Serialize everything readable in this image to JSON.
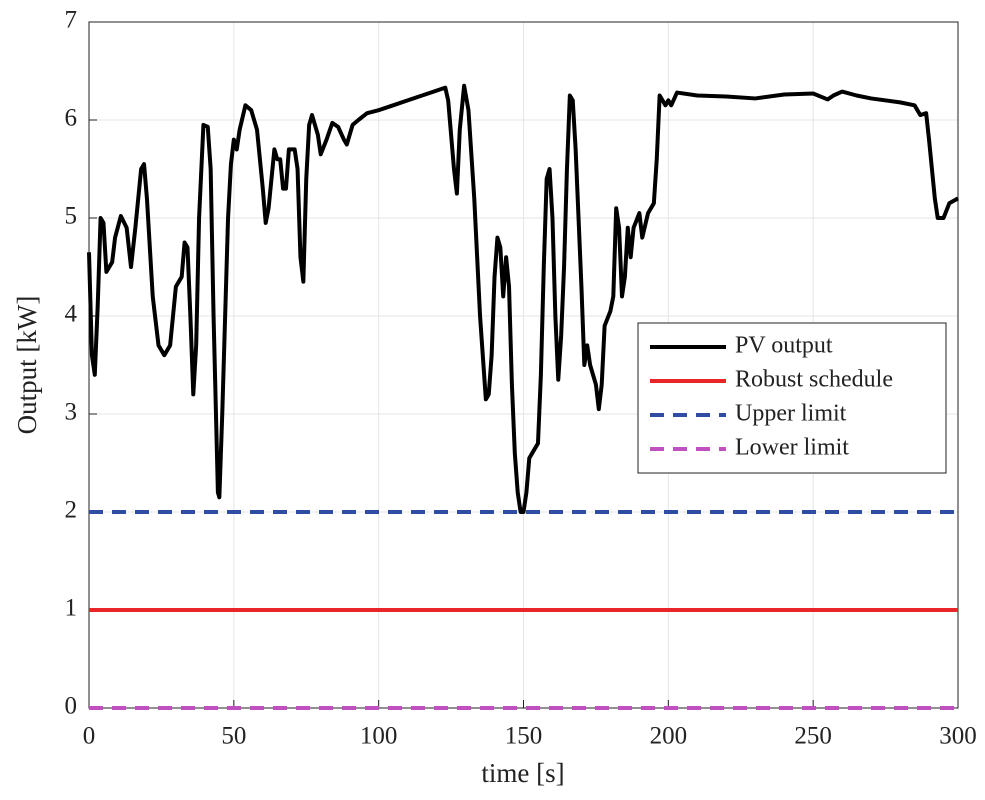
{
  "chart_data": {
    "type": "line",
    "xlabel": "time [s]",
    "ylabel": "Output [kW]",
    "xlim": [
      0,
      300
    ],
    "ylim": [
      0,
      7
    ],
    "xticks": [
      0,
      50,
      100,
      150,
      200,
      250,
      300
    ],
    "yticks": [
      0,
      1,
      2,
      3,
      4,
      5,
      6,
      7
    ],
    "grid": true,
    "legend": "east",
    "series": [
      {
        "name": "PV output",
        "color": "#000000",
        "line_style": "solid",
        "x": [
          0,
          1,
          2,
          3,
          4,
          5,
          6,
          8,
          9,
          11,
          13,
          14.5,
          16,
          18,
          19,
          20,
          22,
          24,
          26,
          28,
          30,
          31,
          32,
          33,
          34,
          35,
          36,
          37,
          38,
          39.5,
          41,
          42,
          43,
          44.5,
          45,
          46,
          48,
          49,
          50,
          51,
          52,
          54,
          56,
          58,
          60,
          61,
          62,
          64,
          65,
          66,
          67,
          68,
          69,
          71,
          72,
          73,
          74,
          75,
          76,
          77,
          79,
          80,
          82,
          84,
          86,
          88,
          89,
          91,
          93,
          96,
          100,
          105,
          110,
          115,
          120,
          123,
          124,
          126,
          127,
          128,
          129.5,
          131,
          133,
          135,
          137,
          138,
          139,
          140,
          141,
          142,
          143,
          144,
          145,
          146,
          147,
          148,
          149,
          150,
          151,
          152,
          153,
          155,
          156,
          157,
          158,
          159,
          160,
          161,
          162,
          163,
          164,
          165,
          166,
          167,
          168,
          170,
          171,
          172,
          173,
          175,
          176,
          177,
          178,
          180,
          181,
          182,
          183,
          184,
          185,
          186,
          187,
          188,
          190,
          191,
          193,
          195,
          196,
          197,
          198,
          199,
          200,
          201,
          203,
          210,
          220,
          230,
          240,
          250,
          255,
          257,
          260,
          265,
          270,
          280,
          285,
          287,
          289,
          290,
          292,
          293,
          295,
          297,
          300
        ],
        "values": [
          4.65,
          3.6,
          3.4,
          4.1,
          5.0,
          4.95,
          4.45,
          4.55,
          4.8,
          5.02,
          4.9,
          4.5,
          4.9,
          5.5,
          5.55,
          5.2,
          4.2,
          3.7,
          3.6,
          3.7,
          4.3,
          4.35,
          4.4,
          4.75,
          4.7,
          4.0,
          3.2,
          3.7,
          5.0,
          5.95,
          5.93,
          5.5,
          4.0,
          2.2,
          2.15,
          3.0,
          5.0,
          5.55,
          5.8,
          5.7,
          5.9,
          6.15,
          6.1,
          5.9,
          5.3,
          4.95,
          5.1,
          5.7,
          5.6,
          5.6,
          5.3,
          5.3,
          5.7,
          5.7,
          5.5,
          4.6,
          4.35,
          5.4,
          5.95,
          6.05,
          5.85,
          5.65,
          5.8,
          5.97,
          5.93,
          5.8,
          5.75,
          5.95,
          6.0,
          6.07,
          6.1,
          6.15,
          6.2,
          6.25,
          6.3,
          6.33,
          6.2,
          5.5,
          5.25,
          5.9,
          6.35,
          6.1,
          5.2,
          4.0,
          3.15,
          3.2,
          3.6,
          4.4,
          4.8,
          4.7,
          4.2,
          4.6,
          4.3,
          3.3,
          2.6,
          2.2,
          2.0,
          2.0,
          2.2,
          2.55,
          2.6,
          2.7,
          3.4,
          4.5,
          5.4,
          5.5,
          5.0,
          4.0,
          3.35,
          3.8,
          4.5,
          5.5,
          6.25,
          6.2,
          5.7,
          4.3,
          3.5,
          3.7,
          3.5,
          3.3,
          3.05,
          3.3,
          3.9,
          4.05,
          4.2,
          5.1,
          4.9,
          4.2,
          4.4,
          4.9,
          4.6,
          4.9,
          5.05,
          4.8,
          5.05,
          5.15,
          5.6,
          6.25,
          6.2,
          6.15,
          6.2,
          6.15,
          6.28,
          6.25,
          6.24,
          6.22,
          6.26,
          6.27,
          6.21,
          6.25,
          6.29,
          6.25,
          6.22,
          6.18,
          6.15,
          6.05,
          6.07,
          5.8,
          5.2,
          5.0,
          5.0,
          5.15,
          5.2
        ]
      },
      {
        "name": "Robust schedule",
        "color": "#e8262a",
        "line_style": "solid",
        "x": [
          0,
          300
        ],
        "values": [
          1,
          1
        ]
      },
      {
        "name": "Upper limit",
        "color": "#2f4ea3",
        "line_style": "dashed",
        "x": [
          0,
          300
        ],
        "values": [
          2,
          2
        ]
      },
      {
        "name": "Lower limit",
        "color": "#c050c0",
        "line_style": "dashed",
        "x": [
          0,
          300
        ],
        "values": [
          0,
          0
        ]
      }
    ]
  }
}
